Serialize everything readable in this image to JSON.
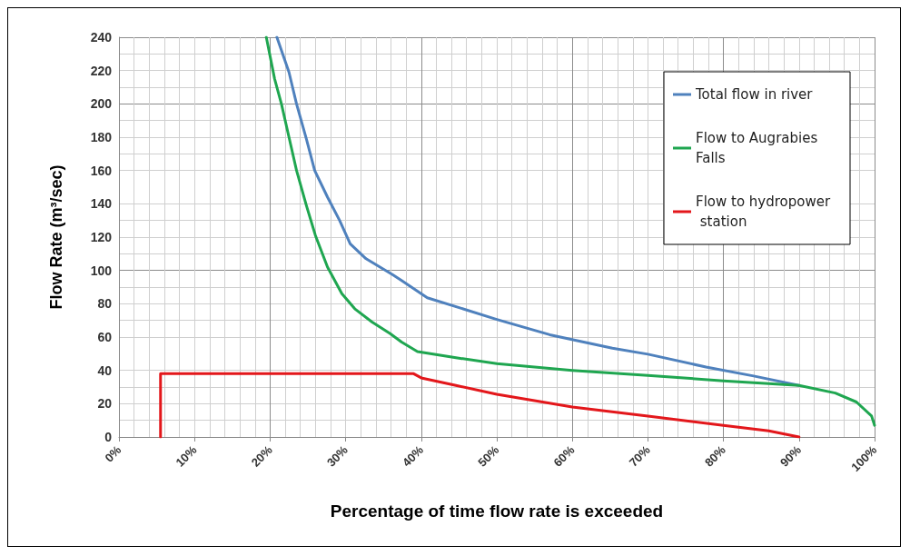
{
  "chart_data": {
    "type": "line",
    "xlabel": "Percentage of time flow rate is exceeded",
    "ylabel": "Flow Rate (m³/sec)",
    "xlim": [
      0,
      100
    ],
    "xticks": [
      {
        "value": 0,
        "label": "0%"
      },
      {
        "value": 10,
        "label": "10%"
      },
      {
        "value": 20,
        "label": "20%"
      },
      {
        "value": 30,
        "label": "30%"
      },
      {
        "value": 40,
        "label": "40%"
      },
      {
        "value": 50,
        "label": "50%"
      },
      {
        "value": 60,
        "label": "60%"
      },
      {
        "value": 70,
        "label": "70%"
      },
      {
        "value": 80,
        "label": "80%"
      },
      {
        "value": 90,
        "label": "90%"
      },
      {
        "value": 100,
        "label": "100%"
      }
    ],
    "ylim": [
      0,
      240
    ],
    "yticks": [
      0,
      20,
      40,
      60,
      80,
      100,
      120,
      140,
      160,
      180,
      200,
      220,
      240
    ],
    "grid": true,
    "legend": "top right",
    "marker": "none",
    "line_style": "solid",
    "series": [
      {
        "name": "Total flow in river",
        "color": "#4f81bd",
        "x": [
          20.9,
          22.5,
          23.5,
          24.8,
          25.9,
          27.6,
          29.2,
          30.6,
          32.7,
          36.2,
          37.4,
          40.8,
          50,
          57,
          65.3,
          70,
          77.7,
          84,
          90
        ],
        "values": [
          240,
          219,
          200,
          179,
          160,
          144,
          130,
          116,
          107,
          97.5,
          94,
          83.6,
          70.6,
          61.4,
          53.3,
          49.7,
          42,
          36.6,
          31
        ]
      },
      {
        "name": "Flow to Augrabies Falls",
        "color": "#1fa650",
        "x": [
          19.5,
          20.6,
          21.5,
          22.5,
          23.5,
          24.8,
          26,
          27.6,
          29.5,
          31.2,
          33.5,
          35.9,
          37.4,
          39.5,
          44.6,
          50,
          60,
          70,
          80,
          90,
          94.8,
          97.6,
          99.6,
          100
        ],
        "values": [
          240,
          215,
          200,
          180,
          160,
          139,
          121,
          102,
          86,
          77,
          69,
          62,
          57,
          51.3,
          47.6,
          44,
          40,
          37,
          33.7,
          31,
          26.4,
          21,
          12.6,
          7
        ]
      },
      {
        "name": "Flow to hydropower station",
        "color": "#e3171b",
        "x": [
          5.5,
          5.5,
          39,
          40,
          44.6,
          50,
          60,
          70,
          80,
          86,
          90
        ],
        "values": [
          0,
          38,
          38,
          35.5,
          31,
          25.6,
          18,
          12.5,
          7,
          3.7,
          0
        ]
      }
    ]
  }
}
